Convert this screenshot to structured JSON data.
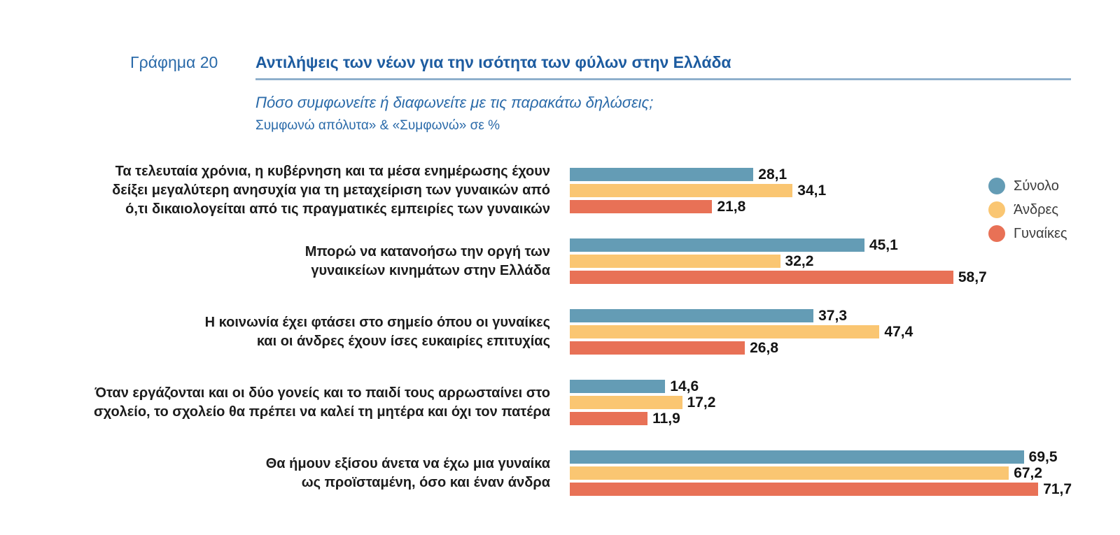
{
  "header": {
    "figure_label": "Γράφημα 20",
    "title": "Αντιλήψεις των νέων για την ισότητα των φύλων στην Ελλάδα",
    "subtitle": "Πόσο συμφωνείτε ή διαφωνείτε με τις παρακάτω δηλώσεις;",
    "note": "Συμφωνώ απόλυτα» & «Συμφωνώ» σε %"
  },
  "colors": {
    "title_blue": "#1d5ca0",
    "label_blue": "#2a6aa9",
    "underline_blue": "#7fa4c4",
    "text_dark": "#1c1c1c",
    "legend_text": "#3c3c3c"
  },
  "chart_data": {
    "type": "bar",
    "orientation": "horizontal",
    "title": "Αντιλήψεις των νέων για την ισότητα των φύλων στην Ελλάδα",
    "subtitle": "Πόσο συμφωνείτε ή διαφωνείτε με τις παρακάτω δηλώσεις;",
    "unit": "%",
    "xlim": [
      0,
      75
    ],
    "grid": false,
    "legend_position": "top-right",
    "series": [
      {
        "key": "synolo",
        "name": "Σύνολο",
        "color": "#649cb5"
      },
      {
        "key": "andres",
        "name": "Άνδρες",
        "color": "#fac672"
      },
      {
        "key": "gynaikes",
        "name": "Γυναίκες",
        "color": "#e87156"
      }
    ],
    "categories": [
      "Τα τελευταία χρόνια, η κυβέρνηση και τα μέσα ενημέρωσης έχουν δείξει μεγαλύτερη ανησυχία για τη μεταχείριση των γυναικών από ό,τι δικαιολογείται από τις πραγματικές εμπειρίες των γυναικών",
      "Μπορώ να κατανοήσω την οργή των γυναικείων κινημάτων στην Ελλάδα",
      "Η κοινωνία έχει φτάσει στο σημείο όπου οι γυναίκες και οι άνδρες έχουν ίσες ευκαιρίες επιτυχίας",
      "Όταν εργάζονται και οι δύο γονείς και το παιδί τους αρρωσταίνει στο σχολείο, το σχολείο θα πρέπει να καλεί τη μητέρα και όχι τον πατέρα",
      "Θα ήμουν εξίσου άνετα να έχω μια γυναίκα ως προϊσταμένη, όσο και έναν άνδρα"
    ],
    "groups": [
      {
        "label_lines": [
          "Τα τελευταία χρόνια, η κυβέρνηση και τα μέσα ενημέρωσης έχουν",
          "δείξει μεγαλύτερη ανησυχία για τη μεταχείριση των γυναικών από",
          "ό,τι δικαιολογείται από τις πραγματικές εμπειρίες των γυναικών"
        ],
        "values": [
          28.1,
          34.1,
          21.8
        ],
        "value_labels": [
          "28,1",
          "34,1",
          "21,8"
        ]
      },
      {
        "label_lines": [
          "Μπορώ να κατανοήσω την οργή των",
          "γυναικείων κινημάτων στην Ελλάδα"
        ],
        "values": [
          45.1,
          32.2,
          58.7
        ],
        "value_labels": [
          "45,1",
          "32,2",
          "58,7"
        ]
      },
      {
        "label_lines": [
          "Η κοινωνία έχει φτάσει στο σημείο όπου οι γυναίκες",
          "και οι άνδρες έχουν ίσες ευκαιρίες επιτυχίας"
        ],
        "values": [
          37.3,
          47.4,
          26.8
        ],
        "value_labels": [
          "37,3",
          "47,4",
          "26,8"
        ]
      },
      {
        "label_lines": [
          "Όταν εργάζονται και οι δύο γονείς και το παιδί τους αρρωσταίνει στο",
          "σχολείο, το σχολείο θα πρέπει να καλεί τη μητέρα και όχι τον πατέρα"
        ],
        "values": [
          14.6,
          17.2,
          11.9
        ],
        "value_labels": [
          "14,6",
          "17,2",
          "11,9"
        ]
      },
      {
        "label_lines": [
          "Θα ήμουν εξίσου άνετα να έχω μια γυναίκα",
          "ως προϊσταμένη, όσο και έναν άνδρα"
        ],
        "values": [
          69.5,
          67.2,
          71.7
        ],
        "value_labels": [
          "69,5",
          "67,2",
          "71,7"
        ]
      }
    ]
  }
}
